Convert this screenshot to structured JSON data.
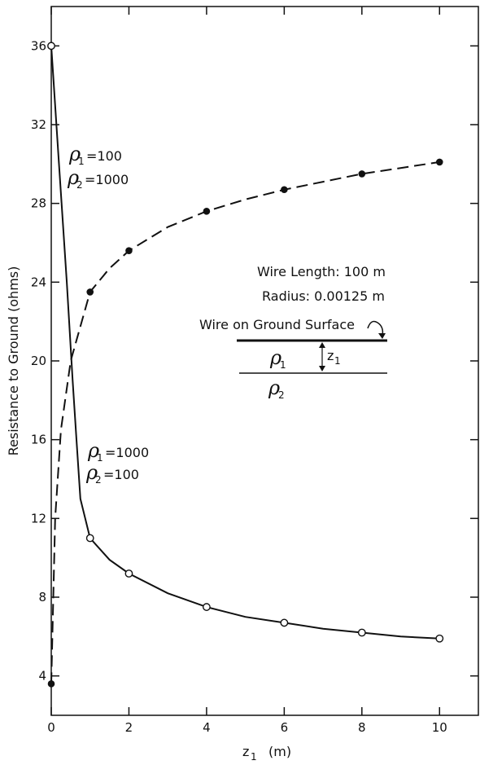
{
  "chart_data": {
    "type": "line",
    "xlabel_symbol": "z",
    "xlabel_subscript": "1",
    "xlabel_unit": "(m)",
    "ylabel": "Resistance to Ground  (ohms)",
    "xlim": [
      0,
      11
    ],
    "ylim": [
      2,
      38
    ],
    "x_ticks": [
      0,
      2,
      4,
      6,
      8,
      10
    ],
    "y_ticks": [
      4,
      8,
      12,
      16,
      20,
      24,
      28,
      32,
      36
    ],
    "grid": false,
    "series": [
      {
        "marker": "filled-circle",
        "line_style": "dashed",
        "curve": [
          [
            0,
            3.6
          ],
          [
            0.1,
            12
          ],
          [
            0.25,
            16.5
          ],
          [
            0.5,
            20
          ],
          [
            1,
            23.5
          ],
          [
            1.5,
            24.7
          ],
          [
            2,
            25.6
          ],
          [
            3,
            26.8
          ],
          [
            4,
            27.6
          ],
          [
            5,
            28.2
          ],
          [
            6,
            28.7
          ],
          [
            7,
            29.1
          ],
          [
            8,
            29.5
          ],
          [
            9,
            29.8
          ],
          [
            10,
            30.1
          ]
        ],
        "points": [
          [
            0,
            3.6
          ],
          [
            1,
            23.5
          ],
          [
            2,
            25.6
          ],
          [
            4,
            27.6
          ],
          [
            6,
            28.7
          ],
          [
            8,
            29.5
          ],
          [
            10,
            30.1
          ]
        ]
      },
      {
        "marker": "open-circle",
        "line_style": "solid",
        "curve": [
          [
            0,
            36
          ],
          [
            0.2,
            30
          ],
          [
            0.4,
            24
          ],
          [
            0.55,
            19
          ],
          [
            0.65,
            16
          ],
          [
            0.75,
            13
          ],
          [
            1,
            11
          ],
          [
            1.5,
            9.9
          ],
          [
            2,
            9.2
          ],
          [
            3,
            8.2
          ],
          [
            4,
            7.5
          ],
          [
            5,
            7
          ],
          [
            6,
            6.7
          ],
          [
            7,
            6.4
          ],
          [
            8,
            6.2
          ],
          [
            9,
            6
          ],
          [
            10,
            5.9
          ]
        ],
        "points": [
          [
            0,
            36
          ],
          [
            1,
            11
          ],
          [
            2,
            9.2
          ],
          [
            4,
            7.5
          ],
          [
            6,
            6.7
          ],
          [
            8,
            6.2
          ],
          [
            10,
            5.9
          ]
        ]
      }
    ],
    "annotations": {
      "series_a_label": {
        "rho": "ρ",
        "sub1": "1",
        "eq1": "=100",
        "sub2": "2",
        "eq2": "=1000"
      },
      "series_b_label": {
        "rho": "ρ",
        "sub1": "1",
        "eq1": "=1000",
        "sub2": "2",
        "eq2": "=100"
      },
      "inset": {
        "wire_length": "Wire Length: 100 m",
        "radius": "Radius: 0.00125 m",
        "wire_label": "Wire on Ground Surface",
        "rho": "ρ",
        "rho1_sub": "1",
        "rho2_sub": "2",
        "z_symbol": "z",
        "z_sub": "1"
      }
    }
  }
}
